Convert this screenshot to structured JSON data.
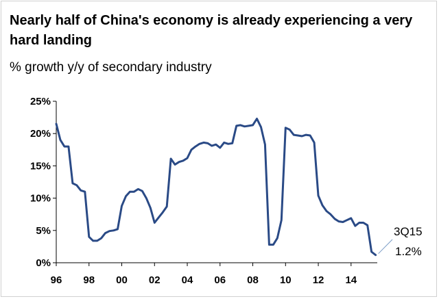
{
  "chart_data": {
    "type": "line",
    "title": "Nearly half of China's economy is already experiencing a very hard landing",
    "subtitle": "% growth y/y of secondary industry",
    "xlabel": "",
    "ylabel": "",
    "xlim": [
      1996,
      2015.6
    ],
    "ylim": [
      0,
      25
    ],
    "x_ticks": [
      {
        "value": 1996,
        "label": "96"
      },
      {
        "value": 1998,
        "label": "98"
      },
      {
        "value": 2000,
        "label": "00"
      },
      {
        "value": 2002,
        "label": "02"
      },
      {
        "value": 2004,
        "label": "04"
      },
      {
        "value": 2006,
        "label": "06"
      },
      {
        "value": 2008,
        "label": "08"
      },
      {
        "value": 2010,
        "label": "10"
      },
      {
        "value": 2012,
        "label": "12"
      },
      {
        "value": 2014,
        "label": "14"
      }
    ],
    "y_ticks": [
      {
        "value": 0,
        "label": "0%"
      },
      {
        "value": 5,
        "label": "5%"
      },
      {
        "value": 10,
        "label": "10%"
      },
      {
        "value": 15,
        "label": "15%"
      },
      {
        "value": 20,
        "label": "20%"
      },
      {
        "value": 25,
        "label": "25%"
      }
    ],
    "series": [
      {
        "name": "Secondary industry growth y/y",
        "color": "#2a4a86",
        "x": [
          1996.0,
          1996.25,
          1996.5,
          1996.75,
          1997.0,
          1997.25,
          1997.5,
          1997.75,
          1998.0,
          1998.25,
          1998.5,
          1998.75,
          1999.0,
          1999.25,
          1999.5,
          1999.75,
          2000.0,
          2000.25,
          2000.5,
          2000.75,
          2001.0,
          2001.25,
          2001.5,
          2001.75,
          2002.0,
          2002.25,
          2002.5,
          2002.75,
          2003.0,
          2003.25,
          2003.5,
          2003.75,
          2004.0,
          2004.25,
          2004.5,
          2004.75,
          2005.0,
          2005.25,
          2005.5,
          2005.75,
          2006.0,
          2006.25,
          2006.5,
          2006.75,
          2007.0,
          2007.25,
          2007.5,
          2007.75,
          2008.0,
          2008.25,
          2008.5,
          2008.75,
          2009.0,
          2009.25,
          2009.5,
          2009.75,
          2010.0,
          2010.25,
          2010.5,
          2010.75,
          2011.0,
          2011.25,
          2011.5,
          2011.75,
          2012.0,
          2012.25,
          2012.5,
          2012.75,
          2013.0,
          2013.25,
          2013.5,
          2013.75,
          2014.0,
          2014.25,
          2014.5,
          2014.75,
          2015.0,
          2015.25,
          2015.5
        ],
        "values": [
          21.5,
          19.0,
          18.0,
          18.0,
          12.3,
          12.0,
          11.2,
          11.0,
          4.0,
          3.4,
          3.4,
          3.8,
          4.6,
          4.9,
          5.0,
          5.2,
          8.8,
          10.3,
          11.0,
          11.0,
          11.4,
          11.1,
          10.0,
          8.5,
          6.2,
          7.0,
          7.8,
          8.7,
          16.1,
          15.2,
          15.6,
          15.8,
          16.2,
          17.5,
          18.0,
          18.4,
          18.6,
          18.5,
          18.1,
          18.3,
          17.8,
          18.6,
          18.4,
          18.5,
          21.2,
          21.3,
          21.1,
          21.2,
          21.3,
          22.3,
          21.0,
          18.3,
          2.8,
          2.8,
          3.8,
          6.6,
          20.9,
          20.6,
          19.8,
          19.7,
          19.6,
          19.8,
          19.7,
          18.6,
          10.4,
          8.9,
          8.0,
          7.5,
          6.8,
          6.4,
          6.3,
          6.6,
          6.9,
          5.7,
          6.2,
          6.2,
          5.8,
          1.7,
          1.2
        ]
      }
    ],
    "annotation": {
      "label": "3Q15",
      "value_label": "1.2%"
    },
    "grid": false,
    "legend": "none"
  }
}
